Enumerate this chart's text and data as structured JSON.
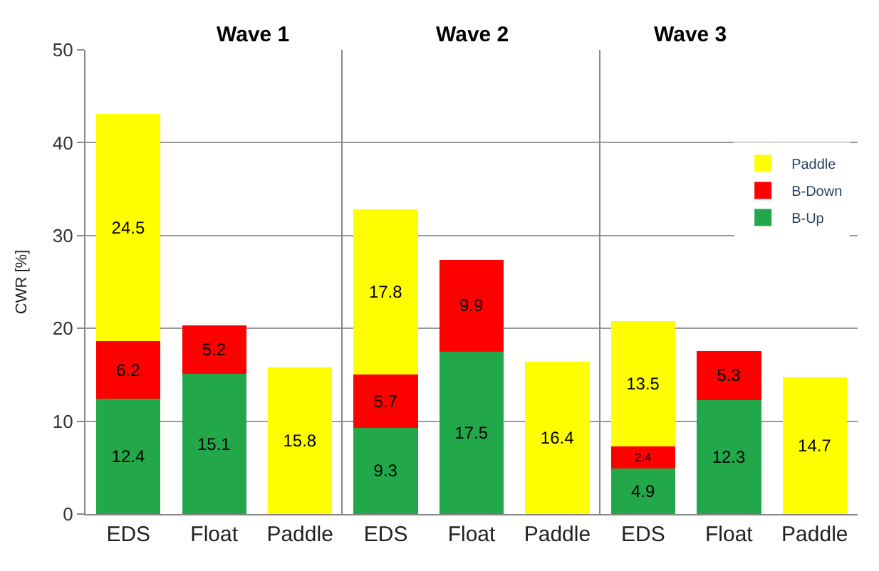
{
  "chart_data": [
    {
      "type": "bar",
      "title": "Wave 1",
      "categories": [
        "EDS",
        "Float",
        "Paddle"
      ],
      "stacked": true,
      "data_labels": true,
      "ylabel": "CWR [%]",
      "ylim": [
        0,
        50
      ],
      "yticks": [
        0,
        10,
        20,
        30,
        40,
        50
      ],
      "grid": "y",
      "series": [
        {
          "color": "#22a84a",
          "values": [
            12.4,
            15.1,
            null
          ]
        },
        {
          "color": "#ff0000",
          "values": [
            6.2,
            5.2,
            null
          ]
        },
        {
          "color": "#ffff00",
          "values": [
            24.5,
            null,
            15.8
          ]
        }
      ]
    },
    {
      "type": "bar",
      "title": "Wave 2",
      "categories": [
        "EDS",
        "Float",
        "Paddle"
      ],
      "stacked": true,
      "data_labels": true,
      "ylim": [
        0,
        50
      ],
      "yticks": [
        0,
        10,
        20,
        30,
        40,
        50
      ],
      "grid": "y",
      "tick_labels": "x",
      "series": [
        {
          "color": "#22a84a",
          "values": [
            9.3,
            17.5,
            null
          ]
        },
        {
          "color": "#ff0000",
          "values": [
            5.7,
            9.9,
            null
          ]
        },
        {
          "color": "#ffff00",
          "values": [
            17.8,
            null,
            16.4
          ]
        }
      ]
    },
    {
      "type": "bar",
      "title": "Wave 3",
      "categories": [
        "EDS",
        "Float",
        "Paddle"
      ],
      "stacked": true,
      "data_labels": true,
      "ylim": [
        0,
        50
      ],
      "yticks": [
        0,
        10,
        20,
        30,
        40,
        50
      ],
      "grid": "y",
      "legend": "top right",
      "tick_labels": "x",
      "series": [
        {
          "name": "B-Up",
          "color": "#22a84a",
          "values": [
            4.9,
            12.3,
            null
          ]
        },
        {
          "name": "B-Down",
          "color": "#ff0000",
          "values": [
            2.4,
            5.3,
            null
          ]
        },
        {
          "name": "Paddle",
          "color": "#ffff00",
          "values": [
            13.5,
            null,
            14.7
          ]
        }
      ]
    }
  ]
}
